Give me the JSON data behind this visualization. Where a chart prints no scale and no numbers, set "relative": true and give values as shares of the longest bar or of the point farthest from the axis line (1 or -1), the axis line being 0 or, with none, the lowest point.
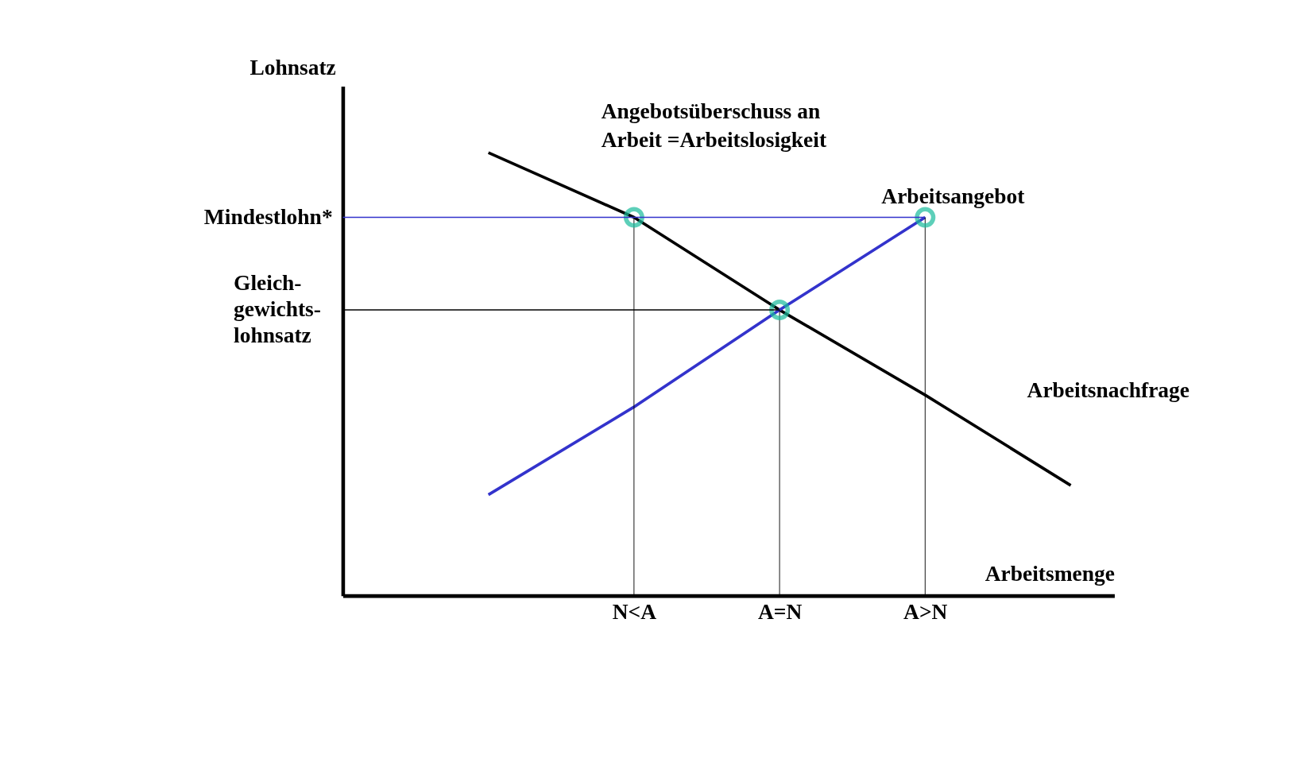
{
  "chart_data": {
    "type": "line",
    "relative": true,
    "xlabel": "Arbeitsmenge",
    "ylabel": "Lohnsatz",
    "categories": [
      null,
      "N<A",
      "A=N",
      "A>N",
      null
    ],
    "series": [
      {
        "name": "Arbeitsnachfrage",
        "color": "#000000",
        "values": [
          1,
          0.854,
          0.645,
          0.453,
          0.249
        ]
      },
      {
        "name": "Arbeitsangebot",
        "color": "#3333cc",
        "values": [
          0.228,
          0.426,
          0.645,
          0.854,
          null
        ]
      },
      {
        "type": "scatter",
        "color": "#1abc9c",
        "marker": "circle",
        "values": [
          null,
          0.854,
          0.645,
          0.854,
          null
        ]
      }
    ],
    "ref_lines": [
      {
        "axis": "y",
        "value": 0.854,
        "label": "Mindestlohn*",
        "color": "#3333cc"
      },
      {
        "axis": "y",
        "value": 0.645,
        "label": "Gleich-\ngewichts-\nlohnsatz",
        "color": "#000000"
      }
    ],
    "annotations": [
      "Angebotsüberschuss an\nArbeit =Arbeitslosigkeit"
    ],
    "marker": "none",
    "line_style": "solid"
  }
}
